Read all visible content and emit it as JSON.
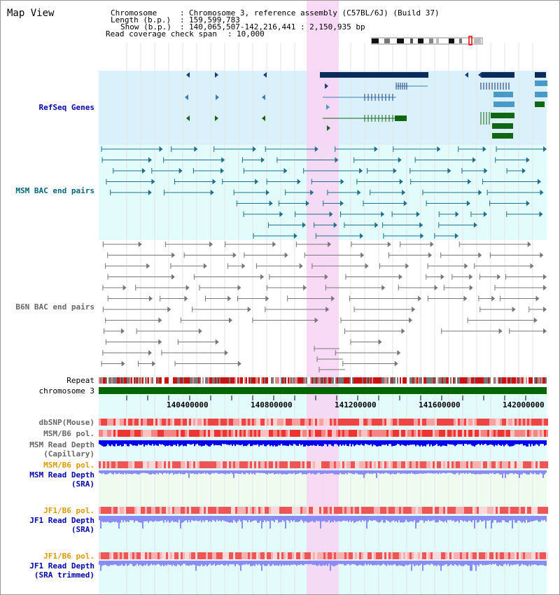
{
  "header": {
    "title": "Map View",
    "chromosome_label": "Chromosome",
    "chromosome_value": "Chromosome 3, reference assembly (C57BL/6J) (Build 37)",
    "length_label": "Length (b.p.)",
    "length_value": "159,599,783",
    "show_label": "Show (b.p.)",
    "show_value": "140,065,507-142,216,441 : 2,150,935 bp",
    "coverage_label": "Read coverage check span",
    "coverage_value": "10,000"
  },
  "tracks": {
    "refseq": "RefSeq Genes",
    "msm_bac": "MSM BAC end pairs",
    "b6n_bac": "B6N BAC end pairs",
    "repeat": "Repeat",
    "chromosome": "chromosome 3",
    "dbsnp": "dbSNP(Mouse)",
    "msm_b6_pol": "MSM/B6 pol.",
    "msm_depth_cap_1": "MSM Read Depth",
    "msm_depth_cap_2": "(Capillary)",
    "msm_b6_pol_sra": "MSM/B6 pol.",
    "msm_depth_sra_1": "MSM Read Depth",
    "msm_depth_sra_2": "(SRA)",
    "jf1_b6_pol": "JF1/B6 pol.",
    "jf1_depth_1": "JF1 Read Depth",
    "jf1_depth_2": "(SRA)",
    "jf1_b6_pol_trim": "JF1/B6 pol.",
    "jf1_depth_trim_1": "JF1 Read Depth",
    "jf1_depth_trim_2": "(SRA trimmed)"
  },
  "axis": {
    "ticks": [
      "140400000",
      "140800000",
      "141200000",
      "141600000",
      "142000000"
    ]
  },
  "colors": {
    "highlight": "#f8d4f4",
    "refseq_bg": "#daf0fb",
    "bac_bg": "#e2fbfb",
    "msm_bac": "#1f6f8a",
    "b6n_bac": "#777777",
    "chromosome_bar": "#006600",
    "label_blue": "#0000aa",
    "label_teal": "#006677",
    "label_orange": "#dd9900",
    "depth_cap": "#0000ee",
    "depth_sra": "#8b8bf4"
  }
}
